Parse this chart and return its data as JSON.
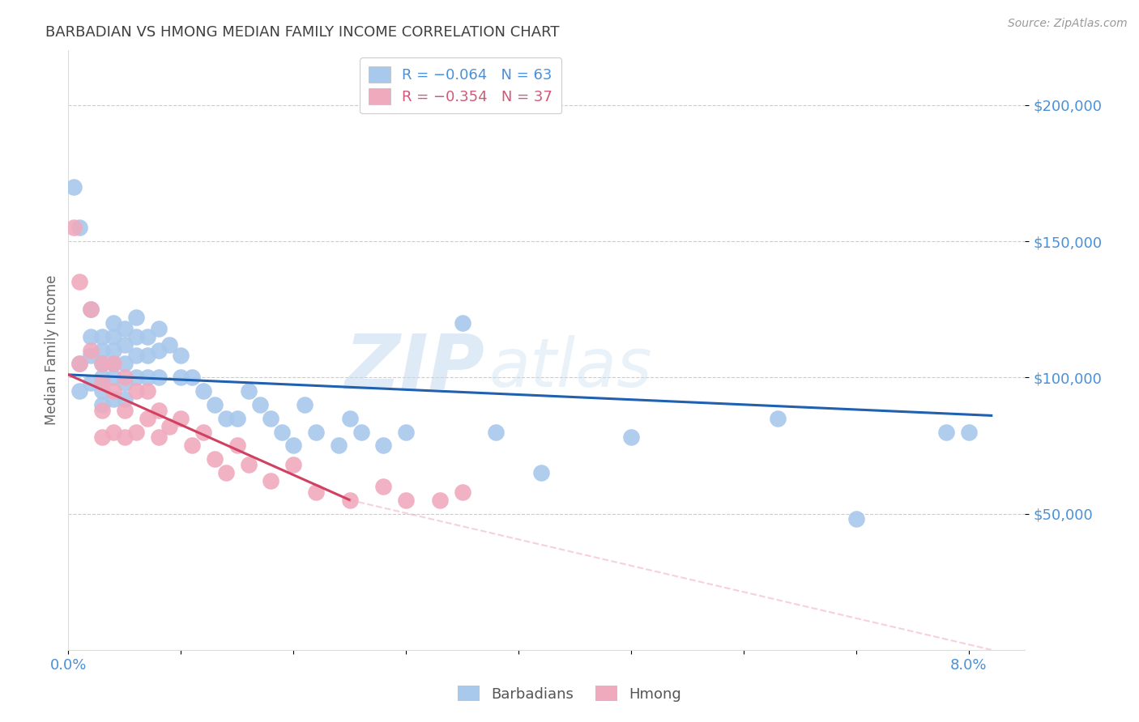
{
  "title": "BARBADIAN VS HMONG MEDIAN FAMILY INCOME CORRELATION CHART",
  "source": "Source: ZipAtlas.com",
  "ylabel": "Median Family Income",
  "xlim": [
    0.0,
    0.085
  ],
  "ylim": [
    0,
    220000
  ],
  "watermark_zip": "ZIP",
  "watermark_atlas": "atlas",
  "blue_color": "#A8C8EC",
  "pink_color": "#F0AABE",
  "line_blue": "#2060B0",
  "line_pink": "#D04060",
  "line_dashed_pink": "#F0AABE",
  "axis_color": "#4A90D9",
  "title_color": "#404040",
  "grid_color": "#CCCCCC",
  "barbadians_x": [
    0.0005,
    0.001,
    0.001,
    0.001,
    0.002,
    0.002,
    0.002,
    0.002,
    0.003,
    0.003,
    0.003,
    0.003,
    0.003,
    0.003,
    0.004,
    0.004,
    0.004,
    0.004,
    0.004,
    0.004,
    0.005,
    0.005,
    0.005,
    0.005,
    0.005,
    0.006,
    0.006,
    0.006,
    0.006,
    0.007,
    0.007,
    0.007,
    0.008,
    0.008,
    0.008,
    0.009,
    0.01,
    0.01,
    0.011,
    0.012,
    0.013,
    0.014,
    0.015,
    0.016,
    0.017,
    0.018,
    0.019,
    0.02,
    0.021,
    0.022,
    0.024,
    0.025,
    0.026,
    0.028,
    0.03,
    0.035,
    0.038,
    0.042,
    0.05,
    0.063,
    0.07,
    0.078,
    0.08
  ],
  "barbadians_y": [
    170000,
    155000,
    105000,
    95000,
    125000,
    115000,
    108000,
    98000,
    115000,
    110000,
    105000,
    100000,
    95000,
    90000,
    120000,
    115000,
    110000,
    105000,
    100000,
    92000,
    118000,
    112000,
    105000,
    98000,
    92000,
    122000,
    115000,
    108000,
    100000,
    115000,
    108000,
    100000,
    118000,
    110000,
    100000,
    112000,
    108000,
    100000,
    100000,
    95000,
    90000,
    85000,
    85000,
    95000,
    90000,
    85000,
    80000,
    75000,
    90000,
    80000,
    75000,
    85000,
    80000,
    75000,
    80000,
    120000,
    80000,
    65000,
    78000,
    85000,
    48000,
    80000,
    80000
  ],
  "hmong_x": [
    0.0005,
    0.001,
    0.001,
    0.002,
    0.002,
    0.003,
    0.003,
    0.003,
    0.003,
    0.004,
    0.004,
    0.004,
    0.005,
    0.005,
    0.005,
    0.006,
    0.006,
    0.007,
    0.007,
    0.008,
    0.008,
    0.009,
    0.01,
    0.011,
    0.012,
    0.013,
    0.014,
    0.015,
    0.016,
    0.018,
    0.02,
    0.022,
    0.025,
    0.028,
    0.03,
    0.033,
    0.035
  ],
  "hmong_y": [
    155000,
    135000,
    105000,
    125000,
    110000,
    105000,
    98000,
    88000,
    78000,
    105000,
    95000,
    80000,
    100000,
    88000,
    78000,
    95000,
    80000,
    95000,
    85000,
    88000,
    78000,
    82000,
    85000,
    75000,
    80000,
    70000,
    65000,
    75000,
    68000,
    62000,
    68000,
    58000,
    55000,
    60000,
    55000,
    55000,
    58000
  ],
  "blue_line_x0": 0.0,
  "blue_line_y0": 101000,
  "blue_line_x1": 0.082,
  "blue_line_y1": 86000,
  "pink_line_x0": 0.0,
  "pink_line_y0": 101000,
  "pink_line_x1_solid": 0.025,
  "pink_line_y1_solid": 55000,
  "pink_line_x1_dash": 0.082,
  "pink_line_y1_dash": 0
}
